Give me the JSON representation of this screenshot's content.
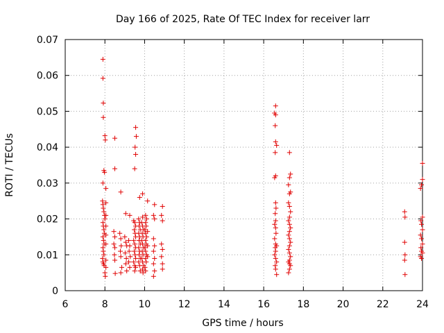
{
  "chart_data": {
    "type": "scatter",
    "title": "Day 166 of 2025, Rate Of TEC Index for receiver larr",
    "xlabel": "GPS time / hours",
    "ylabel": "ROTI / TECUs",
    "xlim": [
      6,
      24
    ],
    "ylim": [
      0,
      0.07
    ],
    "xticks": [
      6,
      8,
      10,
      12,
      14,
      16,
      18,
      20,
      22,
      24
    ],
    "xtick_labels": [
      "6",
      "8",
      "10",
      "12",
      "14",
      "16",
      "18",
      "20",
      "22",
      "24"
    ],
    "yticks": [
      0,
      0.01,
      0.02,
      0.03,
      0.04,
      0.05,
      0.06,
      0.07
    ],
    "ytick_labels": [
      "0",
      "0.01",
      "0.02",
      "0.03",
      "0.04",
      "0.05",
      "0.06",
      "0.07"
    ],
    "grid": true,
    "marker": "+",
    "marker_color": "#e00000",
    "series": [
      {
        "name": "ROTI",
        "points": [
          [
            7.9,
            0.0645
          ],
          [
            7.9,
            0.0592
          ],
          [
            7.92,
            0.0523
          ],
          [
            7.92,
            0.0483
          ],
          [
            8.0,
            0.0432
          ],
          [
            8.02,
            0.042
          ],
          [
            7.95,
            0.0335
          ],
          [
            7.98,
            0.033
          ],
          [
            7.9,
            0.03
          ],
          [
            8.05,
            0.0285
          ],
          [
            7.88,
            0.025
          ],
          [
            7.9,
            0.024
          ],
          [
            7.92,
            0.023
          ],
          [
            7.95,
            0.022
          ],
          [
            7.98,
            0.021
          ],
          [
            8.0,
            0.02
          ],
          [
            7.9,
            0.019
          ],
          [
            7.92,
            0.018
          ],
          [
            7.95,
            0.017
          ],
          [
            7.97,
            0.016
          ],
          [
            7.9,
            0.015
          ],
          [
            7.93,
            0.014
          ],
          [
            7.96,
            0.013
          ],
          [
            7.9,
            0.012
          ],
          [
            7.92,
            0.011
          ],
          [
            7.95,
            0.01
          ],
          [
            7.88,
            0.009
          ],
          [
            7.9,
            0.008
          ],
          [
            7.93,
            0.0075
          ],
          [
            7.96,
            0.007
          ],
          [
            8.0,
            0.005
          ],
          [
            8.02,
            0.004
          ],
          [
            8.05,
            0.0245
          ],
          [
            8.05,
            0.021
          ],
          [
            8.05,
            0.018
          ],
          [
            8.05,
            0.0155
          ],
          [
            8.05,
            0.013
          ],
          [
            8.05,
            0.0085
          ],
          [
            8.05,
            0.0065
          ],
          [
            8.5,
            0.0425
          ],
          [
            8.5,
            0.034
          ],
          [
            8.45,
            0.0165
          ],
          [
            8.5,
            0.015
          ],
          [
            8.45,
            0.013
          ],
          [
            8.5,
            0.012
          ],
          [
            8.48,
            0.01
          ],
          [
            8.5,
            0.0085
          ],
          [
            8.52,
            0.0048
          ],
          [
            8.8,
            0.0275
          ],
          [
            8.75,
            0.016
          ],
          [
            8.8,
            0.0145
          ],
          [
            8.82,
            0.0125
          ],
          [
            8.78,
            0.011
          ],
          [
            8.8,
            0.0095
          ],
          [
            8.85,
            0.0065
          ],
          [
            8.8,
            0.005
          ],
          [
            9.05,
            0.0215
          ],
          [
            9.0,
            0.015
          ],
          [
            9.05,
            0.0135
          ],
          [
            9.1,
            0.0125
          ],
          [
            9.02,
            0.0105
          ],
          [
            9.08,
            0.009
          ],
          [
            9.05,
            0.0075
          ],
          [
            9.1,
            0.0055
          ],
          [
            9.25,
            0.021
          ],
          [
            9.2,
            0.014
          ],
          [
            9.25,
            0.0125
          ],
          [
            9.22,
            0.011
          ],
          [
            9.28,
            0.0095
          ],
          [
            9.2,
            0.008
          ],
          [
            9.25,
            0.0065
          ],
          [
            9.55,
            0.0455
          ],
          [
            9.58,
            0.043
          ],
          [
            9.52,
            0.04
          ],
          [
            9.55,
            0.038
          ],
          [
            9.5,
            0.034
          ],
          [
            9.45,
            0.0195
          ],
          [
            9.5,
            0.019
          ],
          [
            9.55,
            0.018
          ],
          [
            9.48,
            0.017
          ],
          [
            9.52,
            0.016
          ],
          [
            9.55,
            0.015
          ],
          [
            9.45,
            0.014
          ],
          [
            9.5,
            0.013
          ],
          [
            9.55,
            0.012
          ],
          [
            9.48,
            0.011
          ],
          [
            9.52,
            0.01
          ],
          [
            9.55,
            0.009
          ],
          [
            9.45,
            0.008
          ],
          [
            9.5,
            0.007
          ],
          [
            9.55,
            0.0065
          ],
          [
            9.5,
            0.0055
          ],
          [
            9.75,
            0.026
          ],
          [
            9.7,
            0.02
          ],
          [
            9.75,
            0.019
          ],
          [
            9.72,
            0.018
          ],
          [
            9.78,
            0.017
          ],
          [
            9.7,
            0.016
          ],
          [
            9.75,
            0.015
          ],
          [
            9.72,
            0.014
          ],
          [
            9.78,
            0.013
          ],
          [
            9.7,
            0.012
          ],
          [
            9.75,
            0.011
          ],
          [
            9.72,
            0.01
          ],
          [
            9.78,
            0.009
          ],
          [
            9.7,
            0.008
          ],
          [
            9.75,
            0.007
          ],
          [
            9.78,
            0.0055
          ],
          [
            9.9,
            0.027
          ],
          [
            9.9,
            0.0205
          ],
          [
            9.85,
            0.019
          ],
          [
            9.9,
            0.018
          ],
          [
            9.95,
            0.017
          ],
          [
            9.88,
            0.016
          ],
          [
            9.92,
            0.015
          ],
          [
            9.85,
            0.014
          ],
          [
            9.9,
            0.013
          ],
          [
            9.95,
            0.012
          ],
          [
            9.88,
            0.011
          ],
          [
            9.92,
            0.01
          ],
          [
            9.85,
            0.009
          ],
          [
            9.9,
            0.008
          ],
          [
            9.95,
            0.007
          ],
          [
            9.9,
            0.006
          ],
          [
            9.92,
            0.005
          ],
          [
            10.05,
            0.021
          ],
          [
            10.1,
            0.02
          ],
          [
            10.05,
            0.019
          ],
          [
            10.08,
            0.018
          ],
          [
            10.02,
            0.017
          ],
          [
            10.05,
            0.016
          ],
          [
            10.1,
            0.015
          ],
          [
            10.05,
            0.014
          ],
          [
            10.08,
            0.013
          ],
          [
            10.02,
            0.012
          ],
          [
            10.05,
            0.011
          ],
          [
            10.1,
            0.01
          ],
          [
            10.05,
            0.009
          ],
          [
            10.08,
            0.008
          ],
          [
            10.02,
            0.0065
          ],
          [
            10.05,
            0.0055
          ],
          [
            10.15,
            0.025
          ],
          [
            10.15,
            0.0165
          ],
          [
            10.15,
            0.0125
          ],
          [
            10.15,
            0.0095
          ],
          [
            10.5,
            0.024
          ],
          [
            10.45,
            0.021
          ],
          [
            10.5,
            0.02
          ],
          [
            10.45,
            0.0145
          ],
          [
            10.5,
            0.0125
          ],
          [
            10.45,
            0.011
          ],
          [
            10.5,
            0.009
          ],
          [
            10.45,
            0.0075
          ],
          [
            10.5,
            0.0055
          ],
          [
            10.45,
            0.004
          ],
          [
            10.9,
            0.0235
          ],
          [
            10.85,
            0.021
          ],
          [
            10.9,
            0.0195
          ],
          [
            10.85,
            0.013
          ],
          [
            10.9,
            0.0115
          ],
          [
            10.85,
            0.0095
          ],
          [
            10.9,
            0.0075
          ],
          [
            10.9,
            0.006
          ],
          [
            16.6,
            0.0515
          ],
          [
            16.55,
            0.0495
          ],
          [
            16.6,
            0.049
          ],
          [
            16.58,
            0.046
          ],
          [
            16.6,
            0.0415
          ],
          [
            16.65,
            0.0405
          ],
          [
            16.58,
            0.0385
          ],
          [
            16.6,
            0.032
          ],
          [
            16.55,
            0.0315
          ],
          [
            16.6,
            0.0245
          ],
          [
            16.62,
            0.023
          ],
          [
            16.58,
            0.0215
          ],
          [
            16.6,
            0.0195
          ],
          [
            16.55,
            0.0185
          ],
          [
            16.6,
            0.0175
          ],
          [
            16.62,
            0.016
          ],
          [
            16.55,
            0.0145
          ],
          [
            16.6,
            0.013
          ],
          [
            16.65,
            0.0125
          ],
          [
            16.58,
            0.012
          ],
          [
            16.6,
            0.011
          ],
          [
            16.55,
            0.01
          ],
          [
            16.6,
            0.009
          ],
          [
            16.65,
            0.008
          ],
          [
            16.58,
            0.007
          ],
          [
            16.6,
            0.006
          ],
          [
            16.65,
            0.0045
          ],
          [
            17.3,
            0.0385
          ],
          [
            17.35,
            0.0325
          ],
          [
            17.3,
            0.0315
          ],
          [
            17.25,
            0.0295
          ],
          [
            17.35,
            0.0275
          ],
          [
            17.3,
            0.027
          ],
          [
            17.25,
            0.0245
          ],
          [
            17.3,
            0.0235
          ],
          [
            17.35,
            0.022
          ],
          [
            17.3,
            0.0205
          ],
          [
            17.25,
            0.0195
          ],
          [
            17.3,
            0.0185
          ],
          [
            17.35,
            0.0175
          ],
          [
            17.3,
            0.0165
          ],
          [
            17.25,
            0.0155
          ],
          [
            17.3,
            0.0145
          ],
          [
            17.35,
            0.0135
          ],
          [
            17.3,
            0.0125
          ],
          [
            17.25,
            0.0115
          ],
          [
            17.3,
            0.0105
          ],
          [
            17.35,
            0.0095
          ],
          [
            17.3,
            0.0085
          ],
          [
            17.25,
            0.008
          ],
          [
            17.3,
            0.0075
          ],
          [
            17.35,
            0.007
          ],
          [
            17.3,
            0.006
          ],
          [
            17.25,
            0.005
          ],
          [
            23.1,
            0.022
          ],
          [
            23.12,
            0.0205
          ],
          [
            23.1,
            0.0135
          ],
          [
            23.12,
            0.01
          ],
          [
            23.1,
            0.0085
          ],
          [
            23.12,
            0.0045
          ],
          [
            24.0,
            0.0355
          ],
          [
            24.0,
            0.031
          ],
          [
            23.95,
            0.0295
          ],
          [
            23.9,
            0.0285
          ],
          [
            24.0,
            0.0205
          ],
          [
            23.92,
            0.0195
          ],
          [
            23.95,
            0.0185
          ],
          [
            24.0,
            0.017
          ],
          [
            23.9,
            0.0155
          ],
          [
            23.95,
            0.0145
          ],
          [
            24.0,
            0.013
          ],
          [
            23.92,
            0.012
          ],
          [
            23.95,
            0.011
          ],
          [
            24.0,
            0.0105
          ],
          [
            23.9,
            0.0095
          ],
          [
            23.95,
            0.009
          ]
        ]
      }
    ]
  }
}
